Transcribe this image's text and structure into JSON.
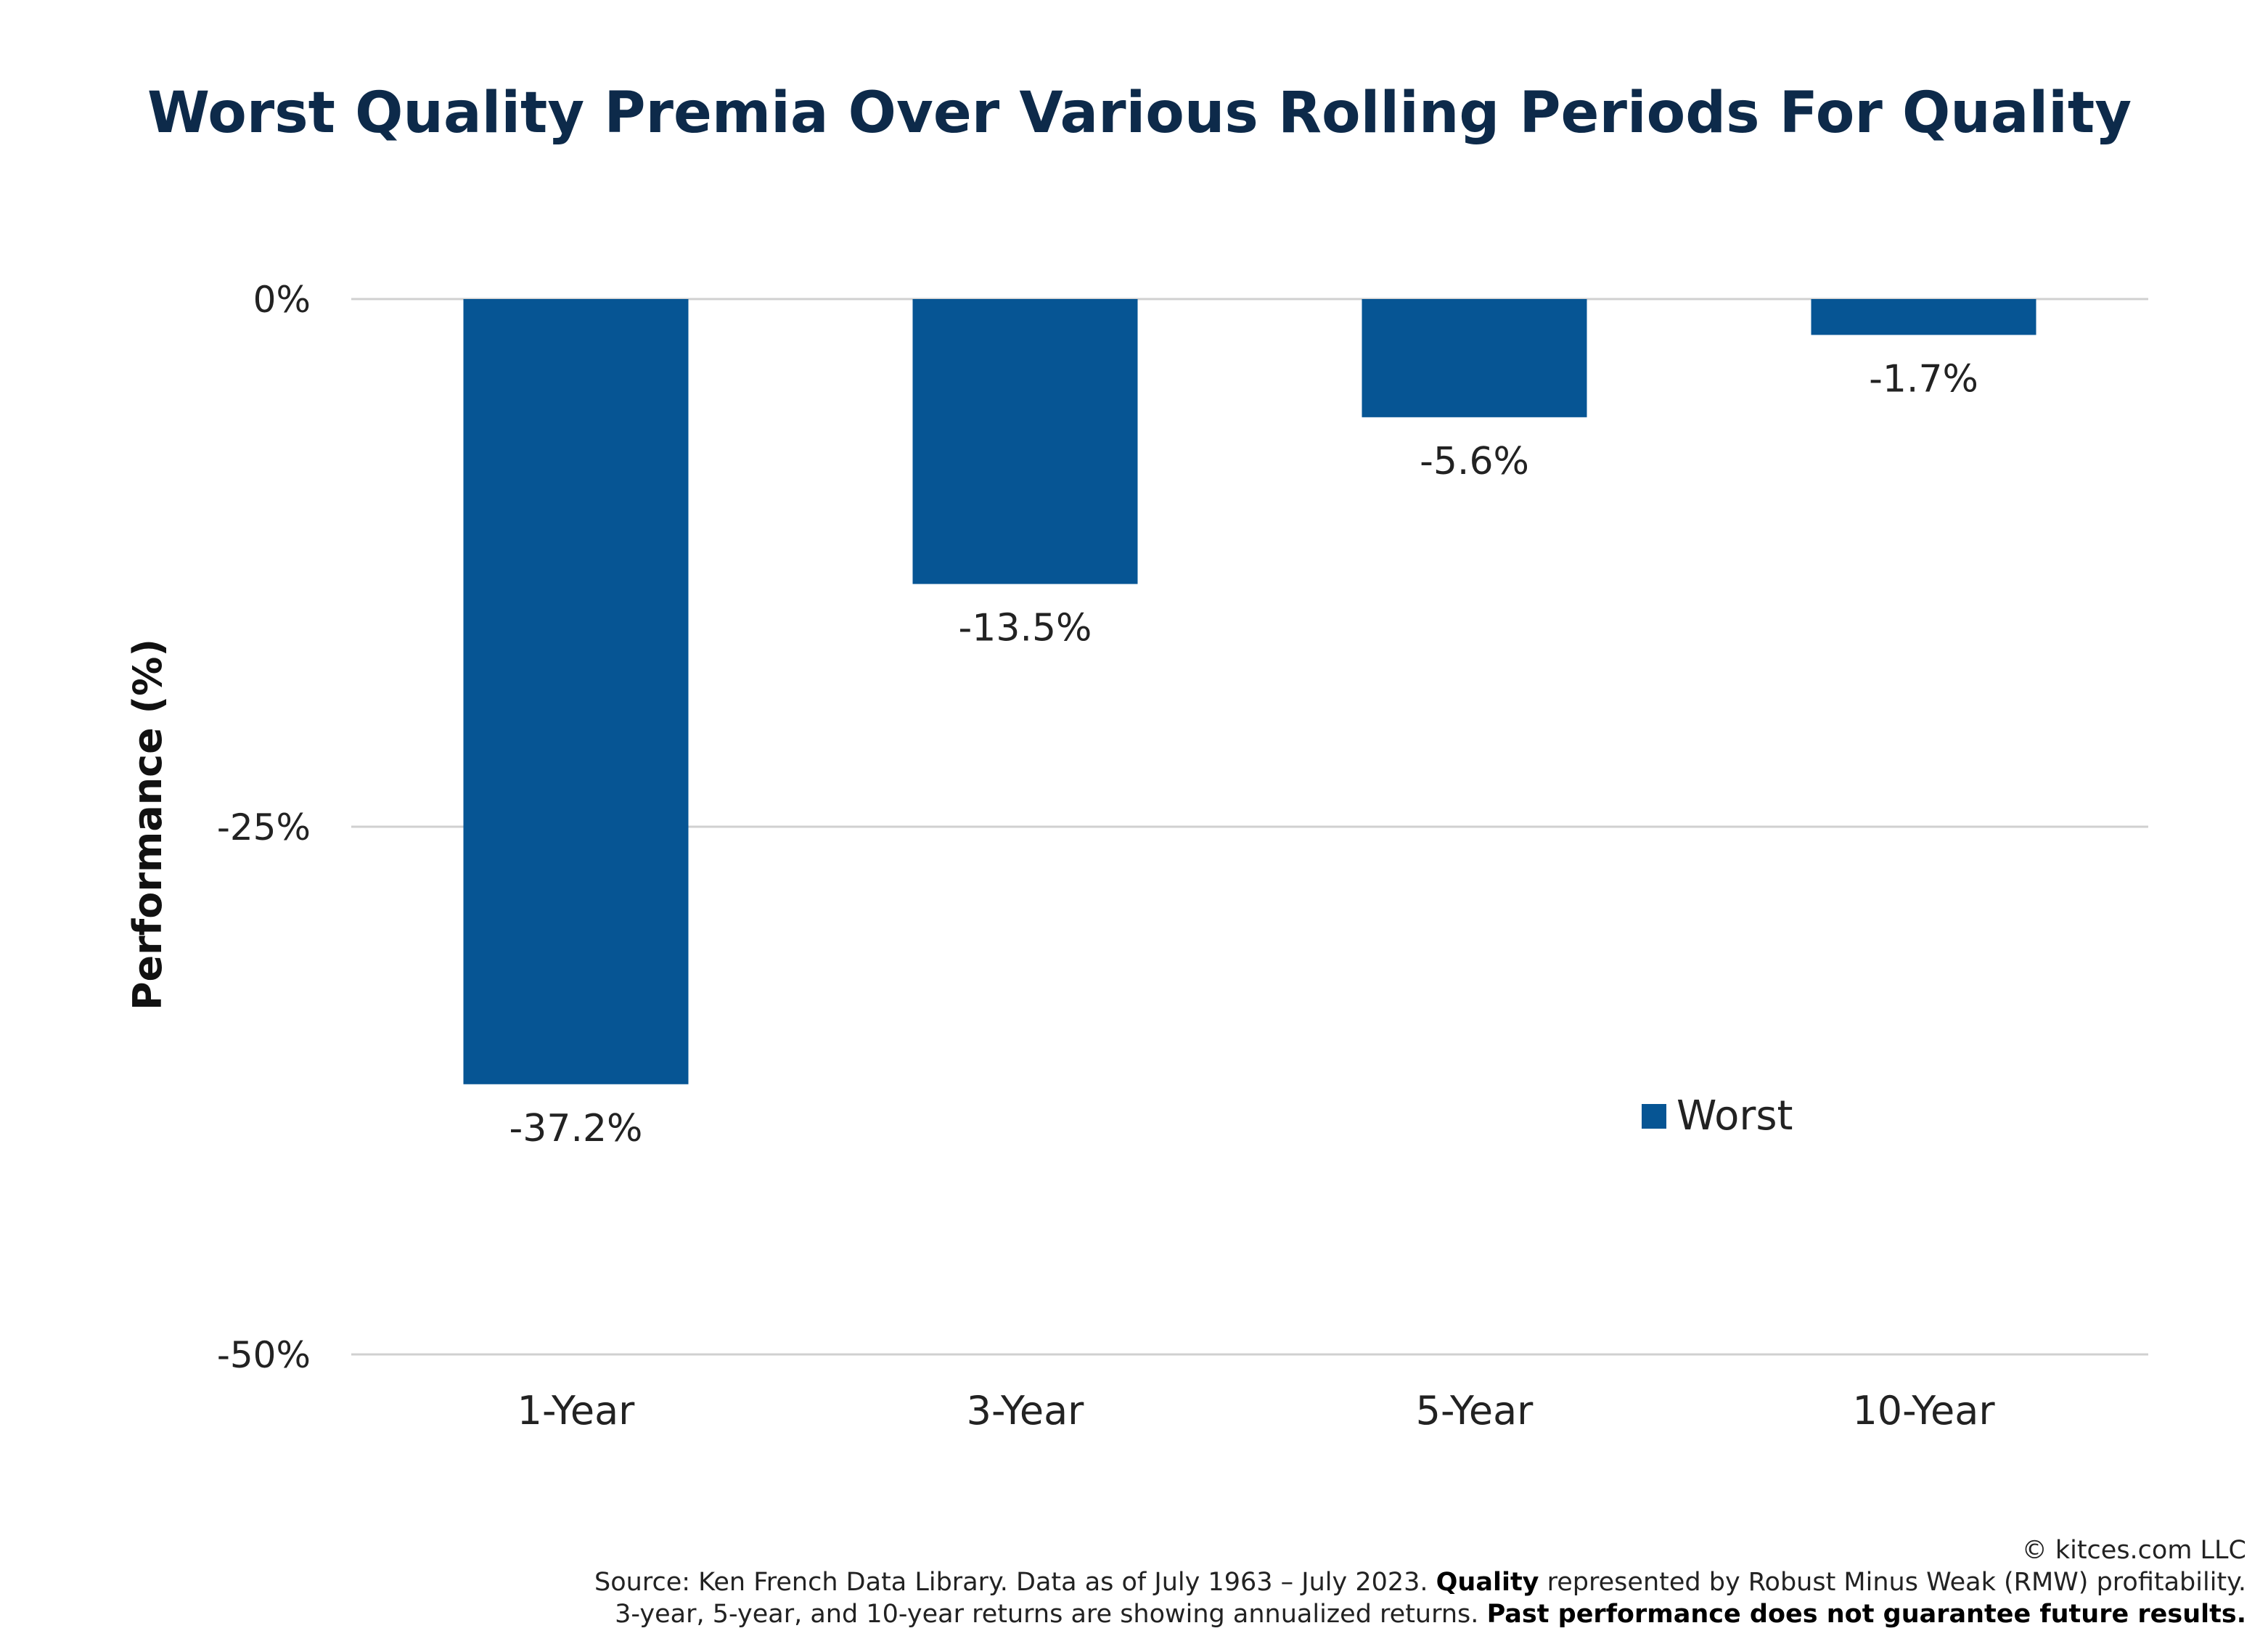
{
  "colors": {
    "bar": "#065594",
    "title": "#0d2a4a",
    "grid": "#d0d0d0"
  },
  "chart_data": {
    "type": "bar",
    "title": "Worst Quality Premia Over Various Rolling Periods For Quality",
    "xlabel": "",
    "ylabel": "Performance (%)",
    "categories": [
      "1-Year",
      "3-Year",
      "5-Year",
      "10-Year"
    ],
    "series": [
      {
        "name": "Worst",
        "values": [
          -37.2,
          -13.5,
          -5.6,
          -1.7
        ],
        "labels": [
          "-37.2%",
          "-13.5%",
          "-5.6%",
          "-1.7%"
        ]
      }
    ],
    "ylim": [
      -50,
      0
    ],
    "yticks": [
      0,
      -25,
      -50
    ],
    "ytick_labels": [
      "0%",
      "-25%",
      "-50%"
    ],
    "grid": true,
    "legend": "lower-right"
  },
  "footer": {
    "copyright": "© kitces.com LLC",
    "source_prefix": "Source: Ken French Data Library. Data as of July 1963 – July 2023.",
    "source_bold": "Quality",
    "source_suffix": "represented by Robust Minus Weak (RMW) profitability.",
    "note_prefix": "3-year, 5-year, and 10-year returns are showing annualized returns.",
    "note_bold": "Past performance does not guarantee future results."
  }
}
